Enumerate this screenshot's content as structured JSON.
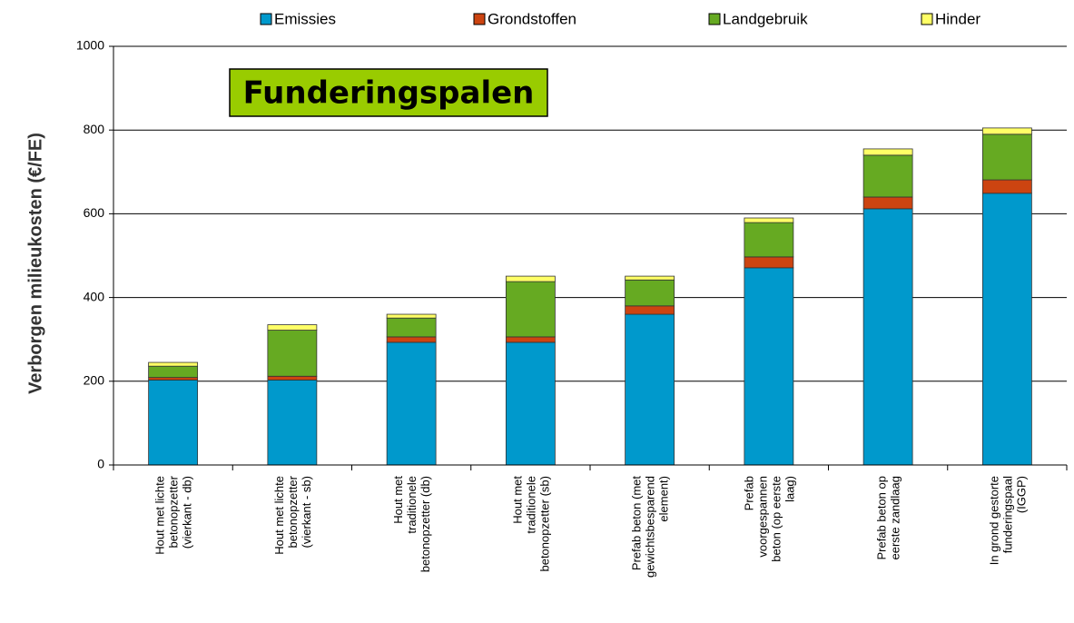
{
  "chart_data": {
    "type": "stacked_bar",
    "title": "Funderingspalen",
    "y_label": "Verborgen milieukosten  (€/FE)",
    "categories": [
      "Hout met lichte\nbetonopzetter\n(vierkant - db)",
      "Hout met lichte\nbetonopzetter\n(vierkant - sb)",
      "Hout met\ntraditionele\nbetonopzetter (db)",
      "Hout met\ntraditionele\nbetonopzetter (sb)",
      "Prefab beton (met\ngewichtsbesparend\nelement)",
      "Prefab\nvoorgespannen\nbeton (op eerste\nlaag)",
      "Prefab beton op\neerste zandlaag",
      "In grond gestorte\nfunderingspaal\n(IGGP)"
    ],
    "series": [
      {
        "name": "Emissies",
        "color": "#0099cc",
        "values": [
          203,
          203,
          293,
          293,
          360,
          471,
          612,
          649
        ]
      },
      {
        "name": "Grondstoffen",
        "color": "#cc4411",
        "values": [
          6,
          9,
          13,
          13,
          20,
          26,
          28,
          32
        ]
      },
      {
        "name": "Landgebruik",
        "color": "#66aa22",
        "values": [
          27,
          110,
          45,
          132,
          62,
          82,
          100,
          109
        ]
      },
      {
        "name": "Hinder",
        "color": "#ffff66",
        "values": [
          9,
          13,
          9,
          13,
          9,
          11,
          15,
          15
        ]
      }
    ],
    "ylim": [
      0,
      1000
    ],
    "yticks": [
      0,
      200,
      400,
      600,
      800,
      1000
    ],
    "grid": true,
    "legend": "top"
  }
}
